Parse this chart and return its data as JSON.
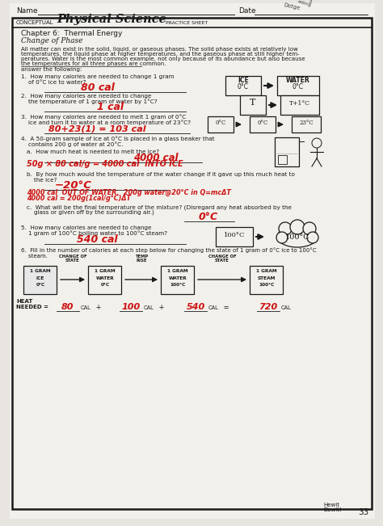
{
  "bg_outer": "#e8e5e0",
  "bg_page": "#f2f0eb",
  "pc": "#1a1a1a",
  "hc": "#cc1111",
  "page_num": "33",
  "title_conceptual": "CONCEPTUAL",
  "title_main": "Physical Science",
  "title_sub": "PRACTICE SHEET",
  "chapter": "Chapter 6: Thermal Energy",
  "subchapter": "Change of Phase",
  "intro1": "All matter can exist in the solid, liquid, or gaseous phases. The solid phase exists at relatively low",
  "intro2": "temperatures, the liquid phase at higher temperatures, and the gaseous phase at still higher tem-",
  "intro3": "peratures. Water is the most common example, not only because of its abundance but also because",
  "intro4": "the temperatures for all three phases are common.",
  "q1": "1.  How many calories are needed to change 1 gram",
  "q1b": "    of 0°C ice to water?",
  "q1a": "80 cal",
  "q2": "2.  How many calories are needed to change",
  "q2b": "    the temperature of 1 gram of water by 1°C?",
  "q2a": "1 cal",
  "q3": "3.  How many calories are needed to melt 1 gram of 0°C",
  "q3b": "    ice and turn it to water at a room temperature of 23°C?",
  "q3a": "80+23(1) = 103 cal",
  "q4": "4.  A 50-gram sample of ice at 0°C is placed in a glass beaker that",
  "q4b": "    contains 200 g of water at 20°C.",
  "q4at": "a.  How much heat is needed to melt the ice?",
  "q4aa": "4000 cal",
  "q4aw": "50g × 80 cal/g = 4000 cal  INTO ICE",
  "q4bt": "b.  By how much would the temperature of the water change if it gave up this much heat to",
  "q4btb": "    the ice?",
  "q4ba": "−20°C",
  "q4bw1": "4000 cal  OUT OF WATER.  200g water@20°C in Q=mcΔT",
  "q4bw2": "4000 cal = 200g(1cal/g°C)ΔT",
  "q4ct": "c.  What will be the final temperature of the mixture? (Disregard any heat absorbed by the",
  "q4ctb": "    glass or given off by the surrounding air.)",
  "q4ca": "0°C",
  "q5": "5.  How many calories are needed to change",
  "q5b": "    1 gram of 100°C boiling water to 100°C steam?",
  "q5a": "540 cal",
  "q6": "6.  Fill in the number of calories at each step below for changing the state of 1 gram of 0°C ice to 100°C",
  "q6b": "    steam.",
  "box_labels": [
    "1 GRAM\nICE\n0°C",
    "1 GRAM\nWATER\n0°C",
    "1 GRAM\nWATER\n100°C",
    "1 GRAM\nSTEAM\n100°C"
  ],
  "arr_labels": [
    "CHANGE OF\nSTATE",
    "TEMP\nRISE",
    "CHANGE OF\nSTATE"
  ],
  "vals": [
    "80",
    "100",
    "540",
    "720"
  ],
  "val_highlight": [
    true,
    false,
    true,
    true
  ]
}
